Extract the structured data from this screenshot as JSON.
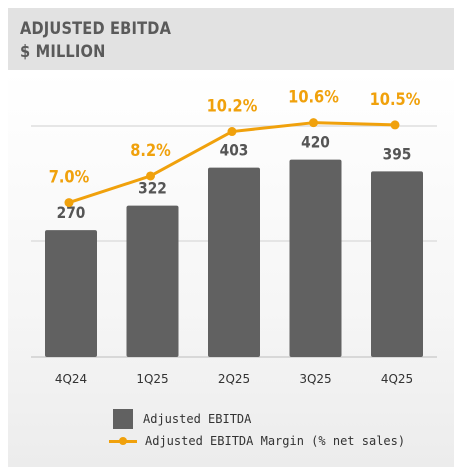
{
  "header": {
    "title": "ADJUSTED EBITDA",
    "subtitle": "$ MILLION"
  },
  "colors": {
    "bar": "#616161",
    "line": "#f0a10c",
    "value_label": "#555555",
    "pct_label": "#f0a10c",
    "axis_label": "#333333",
    "grid": "#d9d9d9",
    "title_band": "#e2e2e2"
  },
  "chart_data": {
    "type": "bar",
    "title": "ADJUSTED EBITDA",
    "subtitle": "$ MILLION",
    "categories": [
      "4Q24",
      "1Q25",
      "2Q25",
      "3Q25",
      "4Q25"
    ],
    "series": [
      {
        "name": "Adjusted EBITDA",
        "type": "bar",
        "values": [
          270,
          322,
          403,
          420,
          395
        ],
        "labels": [
          "270",
          "322",
          "403",
          "420",
          "395"
        ]
      },
      {
        "name": "Adjusted EBITDA Margin (% net sales)",
        "type": "line",
        "values": [
          7.0,
          8.2,
          10.2,
          10.6,
          10.5
        ],
        "labels": [
          "7.0%",
          "8.2%",
          "10.2%",
          "10.6%",
          "10.5%"
        ]
      }
    ],
    "grid": true,
    "legend": "bottom"
  },
  "legend": {
    "items": [
      {
        "label": "Adjusted EBITDA",
        "icon": "bar-swatch"
      },
      {
        "label": "Adjusted EBITDA Margin (% net sales)",
        "icon": "line-swatch"
      }
    ]
  }
}
